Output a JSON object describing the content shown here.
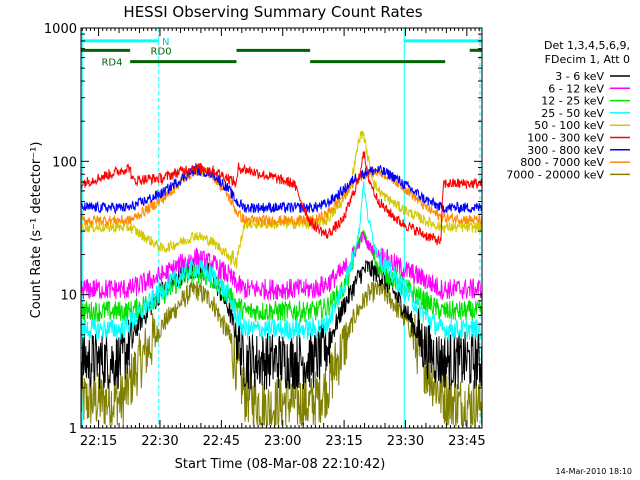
{
  "chart_data": {
    "type": "line",
    "title": "HESSI Observing Summary Count Rates",
    "xlabel": "Start Time (08-Mar-08 22:10:42)",
    "ylabel": "Count Rate (s⁻¹ detector⁻¹)",
    "y_scale": "log",
    "ylim": [
      1,
      1000
    ],
    "xlim_minutes": [
      0,
      98
    ],
    "x_tick_labels": [
      "22:15",
      "22:30",
      "22:45",
      "23:00",
      "23:15",
      "23:30",
      "23:45"
    ],
    "x_tick_minutes": [
      4.3,
      19.3,
      34.3,
      49.3,
      64.3,
      79.3,
      94.3
    ],
    "y_tick_labels": [
      "1",
      "10",
      "100",
      "1000"
    ],
    "y_tick_values": [
      1,
      10,
      100,
      1000
    ],
    "grid": false,
    "legend_position": "right",
    "legend_header": [
      "Det 1,3,4,5,6,9,",
      "FDecim 1, Att 0"
    ],
    "timestamp": "14-Mar-2010 18:10",
    "series": [
      {
        "name": "3 - 6 keV",
        "color": "#000000",
        "x": [
          0,
          10,
          14,
          20,
          26,
          28,
          32,
          36,
          38,
          40,
          46,
          48,
          52,
          57,
          60,
          64,
          67,
          68,
          70,
          73,
          76,
          80,
          84,
          88,
          98
        ],
        "y": [
          3.2,
          3.2,
          6,
          11,
          15,
          16,
          14,
          8,
          5,
          3.2,
          3.2,
          3.2,
          3.2,
          3.2,
          4,
          8,
          12,
          14,
          16,
          14,
          11,
          7,
          4,
          3.2,
          3.2
        ]
      },
      {
        "name": "6 - 12 keV",
        "color": "#ff00ff",
        "x": [
          0,
          12,
          20,
          26,
          28,
          32,
          36,
          38,
          40,
          52,
          57,
          60,
          64,
          66,
          67,
          69,
          70,
          72,
          74,
          78,
          84,
          88,
          98
        ],
        "y": [
          11,
          11,
          14,
          18,
          19,
          17,
          14,
          12,
          11,
          11,
          11,
          12,
          15,
          18,
          21,
          28,
          24,
          21,
          19,
          16,
          13,
          11,
          11
        ]
      },
      {
        "name": "12 - 25 keV",
        "color": "#00e000",
        "x": [
          0,
          12,
          20,
          26,
          28,
          32,
          36,
          38,
          40,
          52,
          57,
          60,
          64,
          66,
          67,
          69,
          70,
          72,
          74,
          78,
          84,
          88,
          98
        ],
        "y": [
          7.5,
          7.5,
          10,
          14,
          15,
          13,
          10,
          8.5,
          7.5,
          7.5,
          7.5,
          8,
          11,
          15,
          22,
          29,
          24,
          18,
          15,
          12,
          9,
          7.5,
          7.5
        ]
      },
      {
        "name": "25 - 50 keV",
        "color": "#00ffff",
        "x": [
          0,
          10,
          14,
          20,
          26,
          28,
          32,
          36,
          38,
          40,
          52,
          57,
          60,
          64,
          66,
          68,
          69,
          70,
          72,
          74,
          78,
          84,
          88,
          98
        ],
        "y": [
          5.5,
          5.5,
          7,
          11,
          15,
          16,
          14,
          10,
          7,
          5.5,
          5.5,
          5.5,
          6,
          11,
          17,
          30,
          70,
          40,
          22,
          17,
          12,
          7,
          5.5,
          5.5
        ]
      },
      {
        "name": "50 - 100 keV",
        "color": "#d4c800",
        "x": [
          0,
          12,
          20,
          26,
          28,
          32,
          36,
          38,
          40,
          52,
          57,
          60,
          64,
          66,
          67,
          68,
          69,
          70,
          71,
          72,
          74,
          78,
          84,
          88,
          98
        ],
        "y": [
          32,
          32,
          22,
          26,
          28,
          25,
          20,
          18,
          34,
          34,
          34,
          36,
          50,
          70,
          100,
          150,
          165,
          110,
          80,
          65,
          55,
          45,
          36,
          32,
          32
        ]
      },
      {
        "name": "100 - 300 keV",
        "color": "#ff0000",
        "x": [
          0,
          12,
          12.5,
          20,
          26,
          28,
          32,
          36,
          38,
          38.5,
          52,
          56,
          60,
          64,
          66,
          68,
          69,
          70,
          72,
          74,
          78,
          84,
          88,
          88.5,
          98
        ],
        "y": [
          68,
          90,
          72,
          75,
          88,
          90,
          86,
          75,
          68,
          90,
          68,
          35,
          28,
          36,
          52,
          75,
          120,
          80,
          55,
          45,
          35,
          28,
          25,
          68,
          68
        ]
      },
      {
        "name": "300 - 800 keV",
        "color": "#0000ff",
        "x": [
          0,
          12,
          20,
          26,
          28,
          32,
          36,
          38,
          40,
          52,
          57,
          60,
          64,
          67,
          70,
          73,
          76,
          80,
          84,
          88,
          98
        ],
        "y": [
          45,
          45,
          58,
          80,
          86,
          82,
          62,
          50,
          45,
          45,
          45,
          48,
          60,
          75,
          84,
          86,
          78,
          64,
          52,
          45,
          45
        ]
      },
      {
        "name": "800 - 7000 keV",
        "color": "#ff8c00",
        "x": [
          0,
          12,
          20,
          26,
          28,
          32,
          36,
          38,
          40,
          52,
          57,
          60,
          64,
          67,
          70,
          73,
          76,
          80,
          84,
          88,
          98
        ],
        "y": [
          36,
          36,
          52,
          78,
          86,
          80,
          55,
          42,
          36,
          36,
          36,
          40,
          55,
          72,
          82,
          84,
          75,
          60,
          46,
          38,
          36
        ]
      },
      {
        "name": "7000 - 20000 keV",
        "color": "#808000",
        "x": [
          0,
          10,
          14,
          20,
          26,
          28,
          32,
          36,
          38,
          40,
          46,
          50,
          56,
          60,
          64,
          67,
          70,
          73,
          76,
          80,
          84,
          88,
          92,
          98
        ],
        "y": [
          1.6,
          1.6,
          3,
          6,
          10,
          11,
          9,
          5,
          3,
          1.8,
          1.4,
          1.6,
          1.5,
          2,
          4,
          7,
          10,
          11,
          9,
          6,
          3,
          1.8,
          1.5,
          1.5
        ]
      }
    ],
    "annotations": {
      "attenuator_bars": [
        {
          "label": "",
          "y": 800,
          "color": "#00ffff",
          "segments": [
            [
              0,
              19
            ]
          ],
          "label_minute": null
        },
        {
          "label": "",
          "y": 800,
          "color": "#00ffff",
          "segments": [
            [
              79,
              98
            ]
          ],
          "label_minute": null
        },
        {
          "label": "RD0",
          "y": 680,
          "color": "#006400",
          "segments": [
            [
              0,
              12
            ],
            [
              38,
              56
            ],
            [
              95,
              98
            ]
          ],
          "label_minute": 17
        },
        {
          "label": "RD4",
          "y": 560,
          "color": "#006400",
          "segments": [
            [
              12,
              38
            ],
            [
              56,
              89
            ]
          ],
          "label_minute": 5
        }
      ],
      "cyan_marker_label": "N",
      "vertical_lines": [
        {
          "minute": 0.3,
          "style": "solid",
          "color": "#00ffff"
        },
        {
          "minute": 19,
          "style": "dashed",
          "color": "#00ffff"
        },
        {
          "minute": 79,
          "style": "solid",
          "color": "#00ffff"
        },
        {
          "minute": 97.5,
          "style": "dashed",
          "color": "#00ffff"
        }
      ]
    }
  }
}
